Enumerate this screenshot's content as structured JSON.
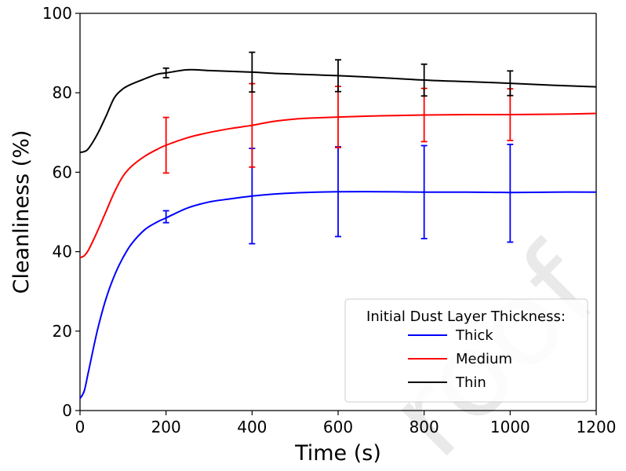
{
  "chart_data": {
    "type": "line",
    "xlabel": "Time (s)",
    "ylabel": "Cleanliness (%)",
    "xlim": [
      0,
      1200
    ],
    "ylim": [
      0,
      100
    ],
    "xticks": [
      "0",
      "200",
      "400",
      "600",
      "800",
      "1000",
      "1200"
    ],
    "yticks": [
      "0",
      "20",
      "40",
      "60",
      "80",
      "100"
    ],
    "xtick_values": [
      0,
      200,
      400,
      600,
      800,
      1000,
      1200
    ],
    "ytick_values": [
      0,
      20,
      40,
      60,
      80,
      100
    ],
    "grid": false,
    "legend": {
      "title": "Initial Dust Layer Thickness:",
      "placement": "bottom-right"
    },
    "series": [
      {
        "name": "Thick",
        "color": "#0000ff",
        "x": [
          0,
          10,
          20,
          40,
          60,
          80,
          100,
          120,
          150,
          180,
          200,
          250,
          300,
          350,
          400,
          450,
          500,
          550,
          600,
          700,
          800,
          900,
          1000,
          1100,
          1200
        ],
        "y": [
          3,
          5,
          10,
          20,
          28,
          34,
          38.5,
          42,
          45.5,
          47.5,
          48.5,
          51,
          52.5,
          53.3,
          54,
          54.5,
          54.8,
          55,
          55.1,
          55.1,
          55,
          55,
          54.9,
          55,
          55
        ],
        "errorbars": [
          {
            "x": 200,
            "y": 48.8,
            "err": 1.5
          },
          {
            "x": 400,
            "y": 54,
            "err": 12
          },
          {
            "x": 600,
            "y": 55.1,
            "err": 11.3
          },
          {
            "x": 800,
            "y": 55,
            "err": 11.7
          },
          {
            "x": 1000,
            "y": 54.7,
            "err": 12.3
          }
        ]
      },
      {
        "name": "Medium",
        "color": "#ff0000",
        "x": [
          0,
          10,
          20,
          40,
          60,
          80,
          100,
          120,
          150,
          180,
          200,
          250,
          300,
          350,
          400,
          450,
          500,
          550,
          600,
          700,
          800,
          900,
          1000,
          1100,
          1200
        ],
        "y": [
          38.5,
          39,
          40.5,
          45,
          50,
          55,
          59,
          61.5,
          64,
          65.8,
          66.8,
          68.7,
          70,
          71,
          71.8,
          72.8,
          73.4,
          73.7,
          73.9,
          74.2,
          74.4,
          74.5,
          74.5,
          74.6,
          74.8
        ],
        "errorbars": [
          {
            "x": 200,
            "y": 66.8,
            "err": 7
          },
          {
            "x": 400,
            "y": 71.8,
            "err": 10.5
          },
          {
            "x": 600,
            "y": 73.9,
            "err": 7.7
          },
          {
            "x": 800,
            "y": 74.4,
            "err": 6.7
          },
          {
            "x": 1000,
            "y": 74.5,
            "err": 6.5
          }
        ]
      },
      {
        "name": "Thin",
        "color": "#000000",
        "x": [
          0,
          10,
          20,
          40,
          60,
          80,
          100,
          120,
          150,
          180,
          200,
          250,
          300,
          350,
          400,
          450,
          500,
          550,
          600,
          700,
          800,
          900,
          1000,
          1100,
          1200
        ],
        "y": [
          65,
          65.2,
          66,
          69.5,
          74,
          78.8,
          81,
          82.2,
          83.5,
          84.7,
          85,
          85.8,
          85.6,
          85.4,
          85.2,
          84.9,
          84.7,
          84.5,
          84.3,
          83.8,
          83.2,
          82.8,
          82.4,
          81.9,
          81.5
        ],
        "errorbars": [
          {
            "x": 200,
            "y": 85,
            "err": 1.2
          },
          {
            "x": 400,
            "y": 85.2,
            "err": 5
          },
          {
            "x": 600,
            "y": 84.3,
            "err": 4
          },
          {
            "x": 800,
            "y": 83.2,
            "err": 4
          },
          {
            "x": 1000,
            "y": 82.4,
            "err": 3.1
          }
        ]
      }
    ]
  },
  "watermark": {
    "text": "roof",
    "color": "#e9e9e9"
  }
}
